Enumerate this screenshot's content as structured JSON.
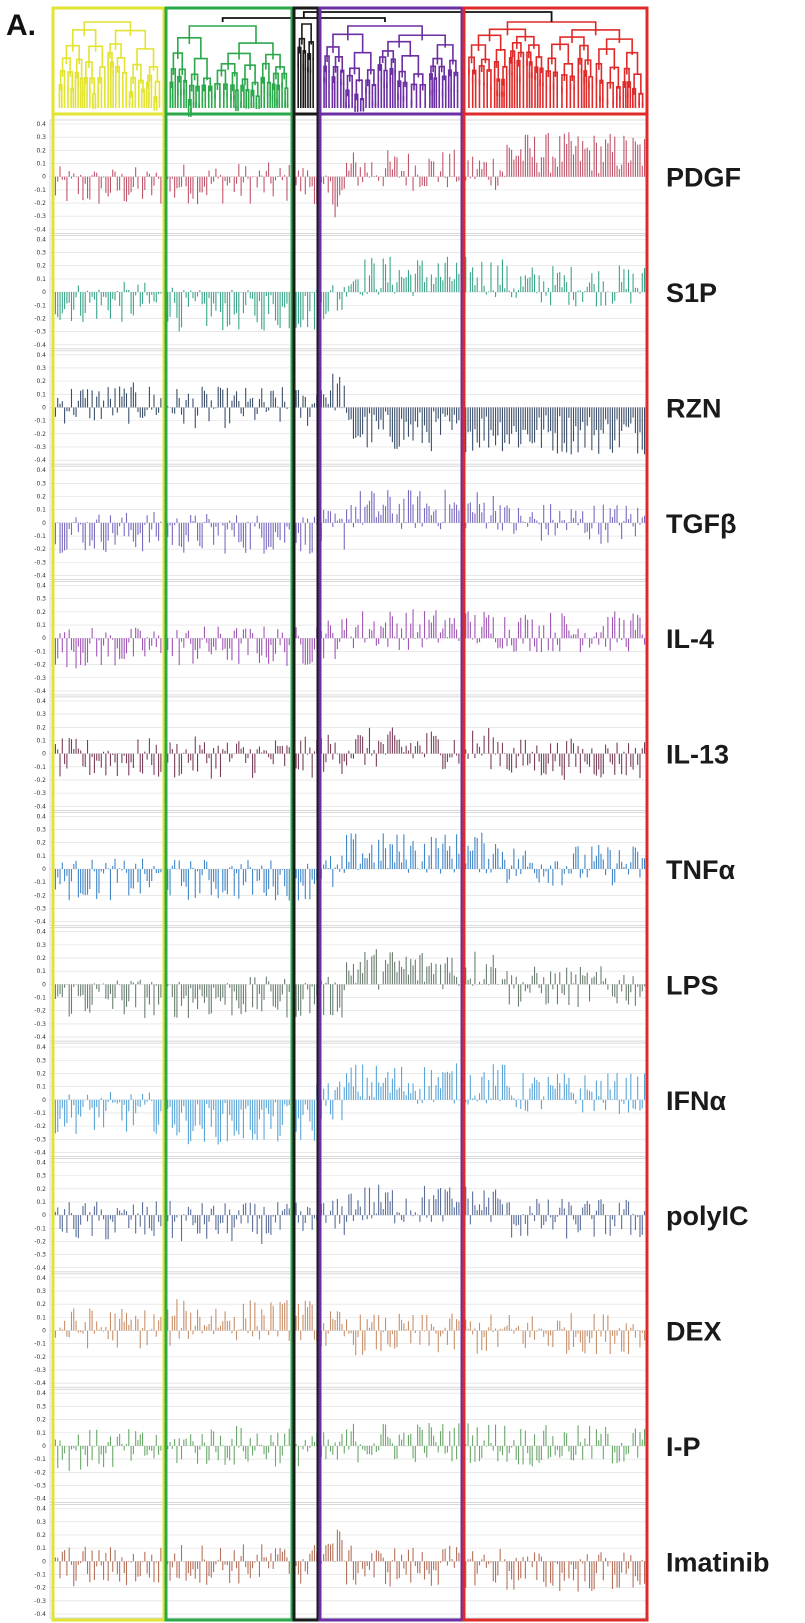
{
  "panel_label": "A.",
  "chart_data": {
    "type": "bar",
    "title": "",
    "ylim": [
      -0.4,
      0.4
    ],
    "yticks": [
      "0.4",
      "0.3",
      "0.2",
      "0.1",
      "0",
      "-0.1",
      "-0.2",
      "-0.3",
      "-0.4"
    ],
    "grid": true,
    "n_genes": 260,
    "clusters": [
      {
        "color": "#e3e331",
        "start": 0,
        "end": 54
      },
      {
        "color": "#2aa84a",
        "start": 54,
        "end": 115
      },
      {
        "color": "#1a1a1a",
        "start": 115,
        "end": 128
      },
      {
        "color": "#6b2fa3",
        "start": 128,
        "end": 198
      },
      {
        "color": "#e02a2a",
        "start": 198,
        "end": 260
      }
    ],
    "series": [
      {
        "name": "PDGF",
        "color": "#c0556a",
        "means": [
          -0.08,
          -0.05,
          -0.15,
          0.05,
          0.18
        ]
      },
      {
        "name": "S1P",
        "color": "#3aa58a",
        "means": [
          -0.08,
          -0.14,
          -0.05,
          0.12,
          0.05
        ]
      },
      {
        "name": "RZN",
        "color": "#3b4f6b",
        "means": [
          0.03,
          0.0,
          0.12,
          -0.18,
          -0.2
        ]
      },
      {
        "name": "TGFβ",
        "color": "#7a6ac0",
        "means": [
          -0.07,
          -0.08,
          -0.06,
          0.1,
          0.0
        ]
      },
      {
        "name": "IL-4",
        "color": "#a055b5",
        "means": [
          -0.07,
          -0.06,
          0.0,
          0.07,
          0.05
        ]
      },
      {
        "name": "IL-13",
        "color": "#7a3e5a",
        "means": [
          -0.04,
          -0.03,
          0.0,
          0.04,
          -0.04
        ]
      },
      {
        "name": "TNFα",
        "color": "#3f86c8",
        "means": [
          -0.08,
          -0.08,
          -0.04,
          0.12,
          0.03
        ]
      },
      {
        "name": "LPS",
        "color": "#6a7f70",
        "means": [
          -0.1,
          -0.1,
          -0.1,
          0.12,
          -0.02
        ]
      },
      {
        "name": "IFNα",
        "color": "#5aa5d8",
        "means": [
          -0.1,
          -0.18,
          0.0,
          0.12,
          0.05
        ]
      },
      {
        "name": "polyIC",
        "color": "#5a6e9a",
        "means": [
          -0.05,
          -0.06,
          -0.03,
          0.08,
          -0.03
        ]
      },
      {
        "name": "DEX",
        "color": "#c8906a",
        "means": [
          0.02,
          0.08,
          0.0,
          -0.03,
          -0.02
        ]
      },
      {
        "name": "I-P",
        "color": "#6aa86a",
        "means": [
          -0.03,
          0.0,
          -0.05,
          0.03,
          0.0
        ]
      },
      {
        "name": "Imatinib",
        "color": "#b5705a",
        "means": [
          -0.04,
          -0.02,
          0.1,
          -0.04,
          -0.08
        ]
      }
    ]
  }
}
